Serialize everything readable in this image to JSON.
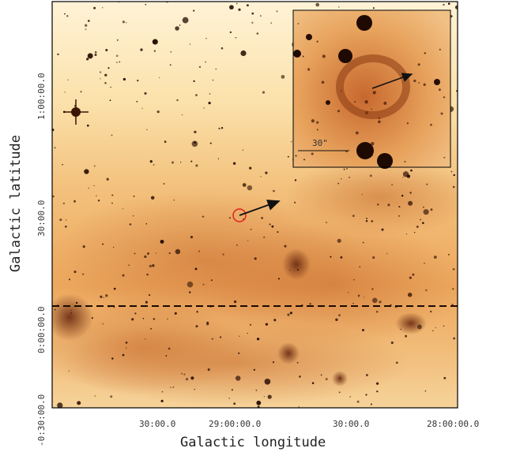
{
  "figure": {
    "x_axis_title": "Galactic longitude",
    "y_axis_title": "Galactic latitude",
    "x_ticks": [
      "30:00.0",
      "29:00:00.0",
      "30:00.0",
      "28:00:00.0"
    ],
    "y_ticks": [
      "1:00:00.0",
      "30:00.0",
      "0:00:00.0",
      "-0:30:00.0"
    ],
    "inset_scale_label": "30\""
  },
  "colors": {
    "frame": "#000000",
    "marker_circle": "#e0201e",
    "background_light": "#fbe8bd",
    "background_mid": "#f0b46a",
    "background_dark": "#c97a32"
  }
}
